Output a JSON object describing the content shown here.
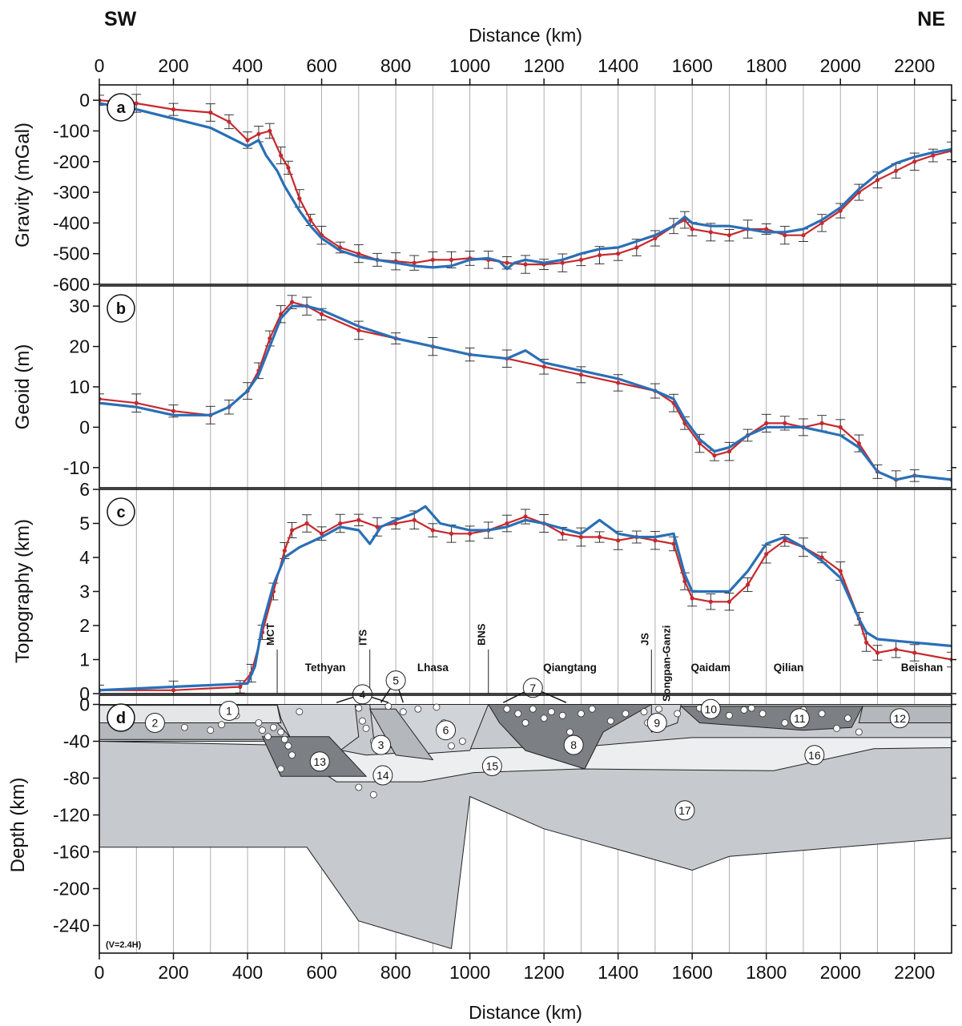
{
  "header": {
    "left": "SW",
    "right": "NE"
  },
  "colors": {
    "observed": "#c8282d",
    "model": "#2a6fb6",
    "error_bars": "#222222",
    "layer_light": "#d0d3d7",
    "layer_mid": "#b4b8bd",
    "layer_dark": "#7c7f84",
    "layer_pale": "#eceeef",
    "mantle": "#c6c9cd"
  },
  "chart_data": [
    {
      "panel": "a",
      "type": "line",
      "xlabel": "Distance (km)",
      "ylabel": "Gravity (mGal)",
      "xlim": [
        0,
        2300
      ],
      "ylim": [
        -600,
        50
      ],
      "xticks": [
        0,
        200,
        400,
        600,
        800,
        1000,
        1200,
        1400,
        1600,
        1800,
        2000,
        2200
      ],
      "yticks": [
        0,
        -100,
        -200,
        -300,
        -400,
        -500,
        -600
      ],
      "grid": "vertical",
      "label_position": "top-left",
      "series": [
        {
          "role": "observed",
          "x": [
            0,
            100,
            200,
            300,
            350,
            400,
            430,
            460,
            490,
            510,
            540,
            570,
            600,
            650,
            700,
            750,
            800,
            850,
            900,
            950,
            1000,
            1050,
            1100,
            1150,
            1200,
            1250,
            1300,
            1350,
            1400,
            1450,
            1500,
            1550,
            1580,
            1600,
            1650,
            1700,
            1750,
            1800,
            1850,
            1900,
            1950,
            2000,
            2050,
            2100,
            2150,
            2200,
            2250,
            2300
          ],
          "y": [
            0,
            -10,
            -30,
            -40,
            -70,
            -130,
            -110,
            -100,
            -180,
            -220,
            -320,
            -390,
            -440,
            -480,
            -500,
            -520,
            -525,
            -530,
            -520,
            -520,
            -515,
            -520,
            -530,
            -535,
            -535,
            -530,
            -520,
            -505,
            -500,
            -480,
            -450,
            -410,
            -390,
            -420,
            -430,
            -440,
            -420,
            -420,
            -440,
            -440,
            -400,
            -360,
            -300,
            -260,
            -230,
            -200,
            -180,
            -165
          ]
        },
        {
          "role": "model",
          "x": [
            0,
            100,
            200,
            300,
            350,
            400,
            430,
            450,
            480,
            500,
            540,
            570,
            600,
            650,
            700,
            750,
            800,
            850,
            900,
            950,
            1000,
            1050,
            1080,
            1100,
            1120,
            1150,
            1200,
            1250,
            1300,
            1350,
            1400,
            1450,
            1500,
            1550,
            1580,
            1600,
            1650,
            1700,
            1750,
            1800,
            1850,
            1900,
            1950,
            2000,
            2050,
            2100,
            2150,
            2200,
            2250,
            2300
          ],
          "y": [
            -10,
            -30,
            -60,
            -90,
            -120,
            -150,
            -130,
            -180,
            -230,
            -280,
            -360,
            -410,
            -450,
            -490,
            -510,
            -520,
            -530,
            -540,
            -545,
            -540,
            -520,
            -515,
            -525,
            -550,
            -530,
            -520,
            -530,
            -520,
            -500,
            -485,
            -480,
            -460,
            -440,
            -410,
            -380,
            -400,
            -410,
            -410,
            -420,
            -430,
            -430,
            -420,
            -390,
            -350,
            -290,
            -240,
            -205,
            -185,
            -170,
            -160
          ]
        }
      ]
    },
    {
      "panel": "b",
      "type": "line",
      "xlabel": "",
      "ylabel": "Geoid (m)",
      "xlim": [
        0,
        2300
      ],
      "ylim": [
        -15,
        35
      ],
      "yticks": [
        30,
        20,
        10,
        0,
        -10
      ],
      "grid": "vertical",
      "label_position": "top-left",
      "series": [
        {
          "role": "observed",
          "x": [
            0,
            100,
            200,
            300,
            350,
            400,
            430,
            460,
            490,
            520,
            560,
            600,
            700,
            800,
            900,
            1000,
            1100,
            1200,
            1300,
            1400,
            1500,
            1550,
            1580,
            1620,
            1660,
            1700,
            1750,
            1800,
            1850,
            1900,
            1950,
            2000,
            2050,
            2100,
            2150,
            2200,
            2300
          ],
          "y": [
            7,
            6,
            4,
            3,
            5,
            9,
            14,
            22,
            28,
            31,
            30,
            28,
            24,
            22,
            20,
            18,
            17,
            15,
            13,
            11,
            9,
            6,
            1,
            -4,
            -7,
            -6,
            -2,
            1,
            1,
            0,
            1,
            0,
            -4,
            -11,
            -13,
            -12,
            -13
          ]
        },
        {
          "role": "model",
          "x": [
            0,
            100,
            200,
            300,
            350,
            400,
            430,
            460,
            490,
            520,
            560,
            600,
            700,
            800,
            900,
            1000,
            1100,
            1150,
            1200,
            1300,
            1400,
            1500,
            1550,
            1580,
            1620,
            1660,
            1700,
            1750,
            1800,
            1850,
            1900,
            1950,
            2000,
            2050,
            2100,
            2150,
            2200,
            2300
          ],
          "y": [
            6,
            5,
            3,
            3,
            5,
            9,
            13,
            20,
            27,
            30,
            30,
            29,
            25,
            22,
            20,
            18,
            17,
            19,
            16,
            14,
            12,
            9,
            7,
            2,
            -3,
            -6,
            -5,
            -2,
            0,
            0,
            0,
            -1,
            -2,
            -5,
            -11,
            -13,
            -12,
            -13
          ]
        }
      ]
    },
    {
      "panel": "c",
      "type": "line",
      "xlabel": "",
      "ylabel": "Topography (km)",
      "xlim": [
        0,
        2300
      ],
      "ylim": [
        0,
        6
      ],
      "yticks": [
        0,
        1,
        2,
        3,
        4,
        5,
        6
      ],
      "grid": "vertical",
      "label_position": "top-left",
      "series": [
        {
          "role": "observed",
          "x": [
            0,
            200,
            380,
            410,
            440,
            470,
            500,
            520,
            560,
            600,
            650,
            700,
            750,
            800,
            850,
            900,
            950,
            1000,
            1050,
            1100,
            1150,
            1200,
            1250,
            1300,
            1350,
            1400,
            1450,
            1500,
            1550,
            1580,
            1600,
            1650,
            1700,
            1750,
            1800,
            1850,
            1900,
            1950,
            2000,
            2050,
            2070,
            2100,
            2150,
            2200,
            2300
          ],
          "y": [
            0.1,
            0.1,
            0.2,
            0.6,
            1.8,
            3.0,
            4.2,
            4.8,
            5.0,
            4.7,
            5.0,
            5.1,
            4.9,
            5.0,
            5.1,
            4.8,
            4.7,
            4.7,
            4.8,
            5.0,
            5.2,
            5.0,
            4.7,
            4.6,
            4.6,
            4.5,
            4.6,
            4.5,
            4.4,
            3.3,
            2.8,
            2.7,
            2.7,
            3.2,
            4.1,
            4.5,
            4.3,
            4.0,
            3.6,
            2.2,
            1.5,
            1.2,
            1.3,
            1.2,
            1.0
          ]
        },
        {
          "role": "model",
          "x": [
            0,
            200,
            400,
            420,
            440,
            470,
            500,
            540,
            600,
            650,
            700,
            730,
            760,
            800,
            850,
            880,
            920,
            1000,
            1050,
            1100,
            1150,
            1200,
            1300,
            1350,
            1400,
            1450,
            1500,
            1550,
            1580,
            1600,
            1650,
            1700,
            1750,
            1800,
            1850,
            1900,
            1950,
            2000,
            2050,
            2070,
            2100,
            2200,
            2300
          ],
          "y": [
            0.1,
            0.2,
            0.3,
            0.8,
            2.0,
            3.2,
            4.0,
            4.3,
            4.6,
            4.9,
            4.8,
            4.4,
            4.9,
            5.1,
            5.3,
            5.5,
            5.0,
            4.8,
            4.8,
            4.9,
            5.1,
            5.0,
            4.7,
            5.1,
            4.7,
            4.6,
            4.6,
            4.7,
            3.5,
            3.0,
            3.0,
            3.0,
            3.6,
            4.4,
            4.6,
            4.3,
            3.9,
            3.4,
            2.2,
            1.8,
            1.6,
            1.5,
            1.4
          ]
        }
      ]
    },
    {
      "panel": "d",
      "type": "area",
      "xlabel": "Distance (km)",
      "ylabel": "Depth (km)",
      "xlim": [
        0,
        2300
      ],
      "ylim": [
        -270,
        10
      ],
      "yticks": [
        0,
        -40,
        -80,
        -120,
        -160,
        -200,
        -240
      ],
      "annotation": "(V=2.4H)",
      "boundaries": [
        {
          "name": "MCT",
          "x": 480
        },
        {
          "name": "ITS",
          "x": 730
        },
        {
          "name": "BNS",
          "x": 1050
        },
        {
          "name": "JS",
          "x": 1490
        }
      ],
      "regions": [
        {
          "name": "Tethyan",
          "x": 610
        },
        {
          "name": "Lhasa",
          "x": 900
        },
        {
          "name": "Qiangtang",
          "x": 1270
        },
        {
          "name": "Songpan-Ganzi",
          "x": 1540,
          "vertical": true
        },
        {
          "name": "Qaidam",
          "x": 1650
        },
        {
          "name": "Qilian",
          "x": 1860
        },
        {
          "name": "Beishan",
          "x": 2220
        }
      ],
      "unit_labels": [
        {
          "n": "1",
          "x": 350,
          "y": -7
        },
        {
          "n": "2",
          "x": 150,
          "y": -20
        },
        {
          "n": "3",
          "x": 760,
          "y": -44
        },
        {
          "n": "4",
          "x": 710,
          "y": 11
        },
        {
          "n": "5",
          "x": 800,
          "y": 26
        },
        {
          "n": "6",
          "x": 935,
          "y": -28
        },
        {
          "n": "7",
          "x": 1170,
          "y": 18
        },
        {
          "n": "8",
          "x": 1280,
          "y": -44
        },
        {
          "n": "9",
          "x": 1505,
          "y": -20
        },
        {
          "n": "10",
          "x": 1650,
          "y": -5
        },
        {
          "n": "11",
          "x": 1890,
          "y": -15
        },
        {
          "n": "12",
          "x": 2160,
          "y": -15
        },
        {
          "n": "13",
          "x": 595,
          "y": -62
        },
        {
          "n": "14",
          "x": 765,
          "y": -77
        },
        {
          "n": "15",
          "x": 1060,
          "y": -67
        },
        {
          "n": "16",
          "x": 1930,
          "y": -55
        },
        {
          "n": "17",
          "x": 1580,
          "y": -115
        }
      ]
    }
  ]
}
